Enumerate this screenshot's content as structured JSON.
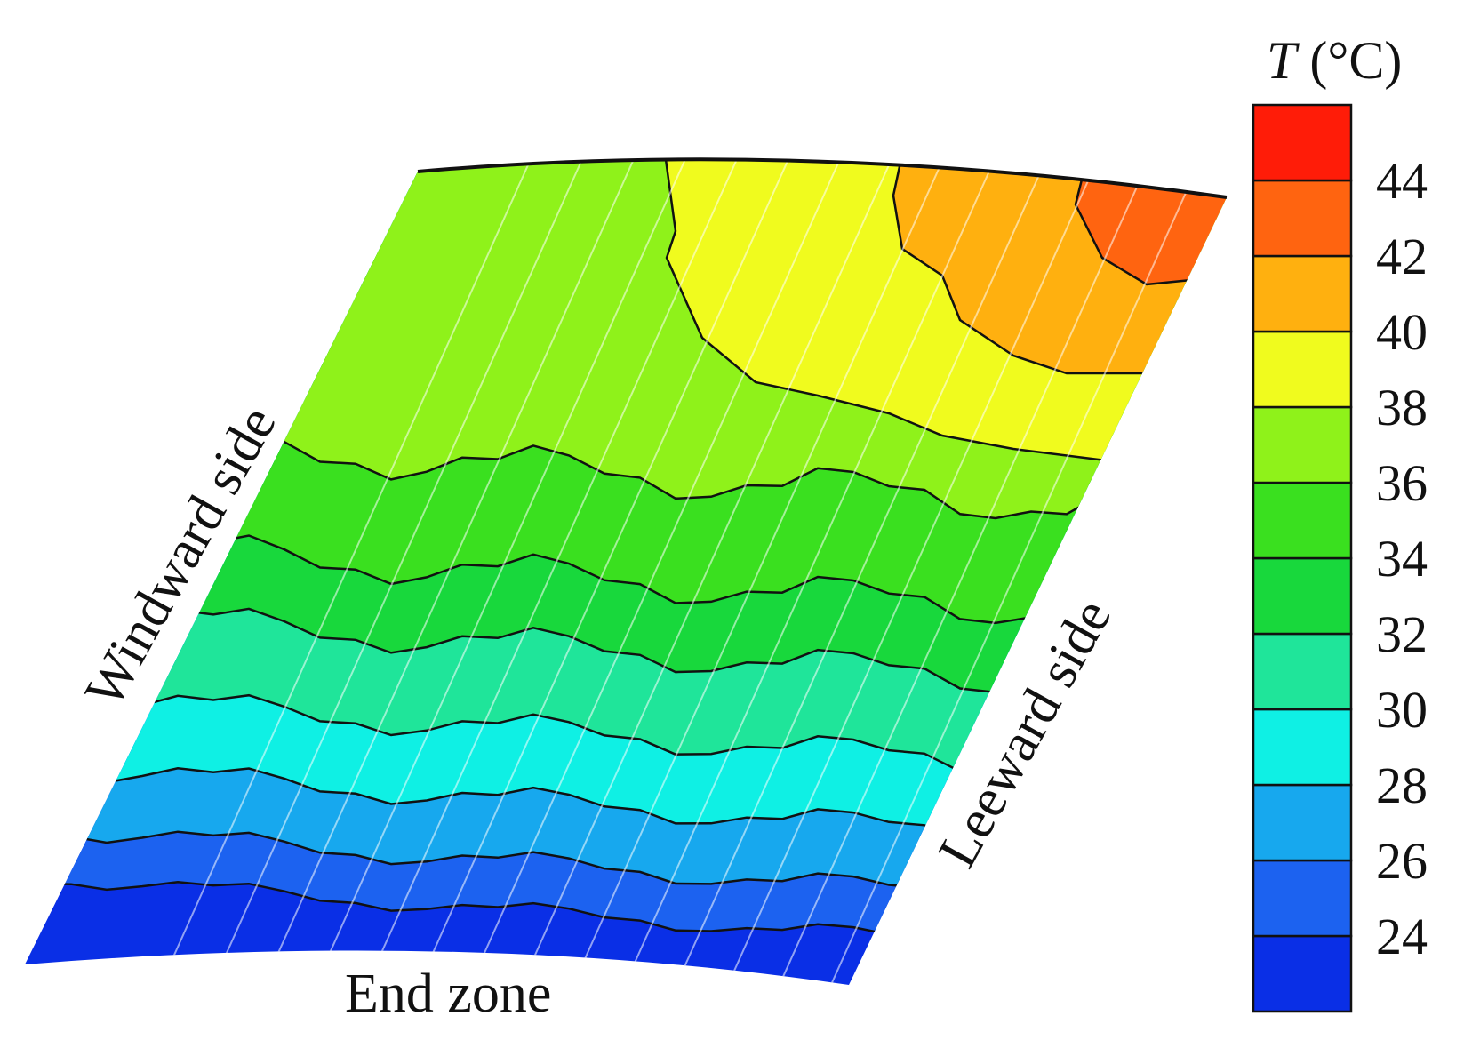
{
  "chart_data": {
    "type": "heatmap",
    "colorbar": {
      "title_symbol": "T",
      "title_unit": " (°C)",
      "tick_labels": [
        "24",
        "26",
        "28",
        "30",
        "32",
        "34",
        "36",
        "38",
        "40",
        "42",
        "44"
      ],
      "levels": [
        {
          "min": 22,
          "max": 24,
          "color": "#0a2fe6"
        },
        {
          "min": 24,
          "max": 26,
          "color": "#1c62f0"
        },
        {
          "min": 26,
          "max": 28,
          "color": "#17a8ee"
        },
        {
          "min": 28,
          "max": 30,
          "color": "#0ff0e4"
        },
        {
          "min": 30,
          "max": 32,
          "color": "#1fe59a"
        },
        {
          "min": 32,
          "max": 34,
          "color": "#18d83c"
        },
        {
          "min": 34,
          "max": 36,
          "color": "#3ae01f"
        },
        {
          "min": 36,
          "max": 38,
          "color": "#8ff21a"
        },
        {
          "min": 38,
          "max": 40,
          "color": "#f0fb1e"
        },
        {
          "min": 40,
          "max": 42,
          "color": "#ffb00f"
        },
        {
          "min": 42,
          "max": 44,
          "color": "#ff6410"
        },
        {
          "min": 44,
          "max": 46,
          "color": "#ff1c08"
        }
      ]
    },
    "annotations": {
      "windward": "Windward side",
      "leeward": "Leeward side",
      "end_zone": "End zone"
    }
  }
}
